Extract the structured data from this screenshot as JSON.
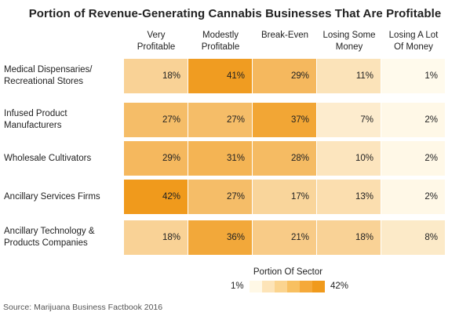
{
  "chart_data": {
    "type": "heatmap",
    "title": "Portion of Revenue-Generating Cannabis Businesses That Are Profitable",
    "columns": [
      "Very\nProfitable",
      "Modestly\nProfitable",
      "Break-Even",
      "Losing Some\nMoney",
      "Losing A Lot\nOf Money"
    ],
    "rows": [
      "Medical Dispensaries/\nRecreational Stores",
      "Infused Product\nManufacturers",
      "Wholesale Cultivators",
      "Ancillary Services Firms",
      "Ancillary Technology &\nProducts Companies"
    ],
    "values": [
      [
        18,
        41,
        29,
        11,
        1
      ],
      [
        27,
        27,
        37,
        7,
        2
      ],
      [
        29,
        31,
        28,
        10,
        2
      ],
      [
        42,
        27,
        17,
        13,
        2
      ],
      [
        18,
        36,
        21,
        18,
        8
      ]
    ],
    "value_suffix": "%",
    "legend": {
      "title": "Portion Of Sector",
      "min_label": "1%",
      "max_label": "42%",
      "steps": [
        "#fff8e6",
        "#fde4b8",
        "#fbd48f",
        "#f8c061",
        "#f5a93a",
        "#f09a1c"
      ]
    },
    "source": "Source: Marijuana Business Factbook 2016"
  }
}
